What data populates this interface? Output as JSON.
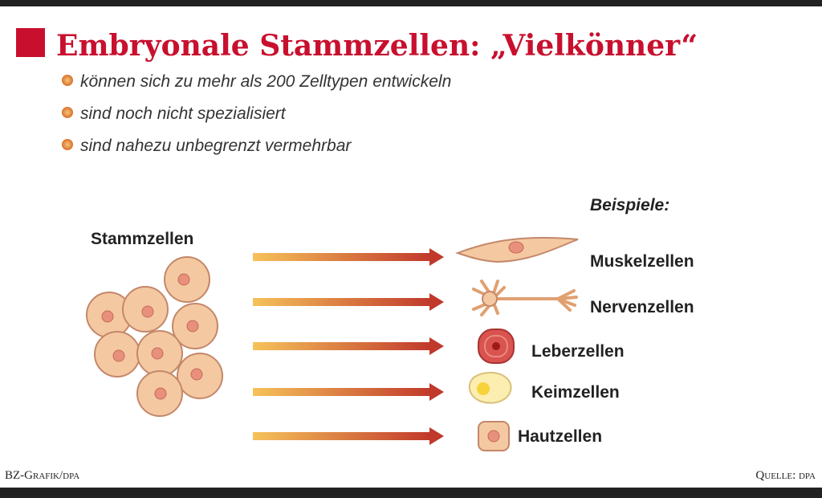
{
  "header": {
    "title": "Embryonale Stammzellen: „Vielkönner“"
  },
  "bullets": [
    "können sich zu mehr als 200 Zelltypen entwickeln",
    "sind noch nicht spezialisiert",
    "sind nahezu unbegrenzt vermehrbar"
  ],
  "diagram": {
    "source_label": "Stammzellen",
    "examples_label": "Beispiele:",
    "targets": [
      "Muskelzellen",
      "Nervenzellen",
      "Leberzellen",
      "Keimzellen",
      "Hautzellen"
    ]
  },
  "footer": {
    "credit": "BZ-Grafik/dpa",
    "source": "Quelle: dpa"
  }
}
